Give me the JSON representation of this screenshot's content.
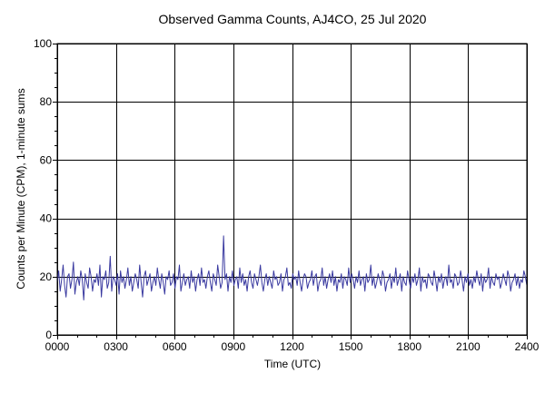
{
  "chart_data": {
    "type": "line",
    "title": "Observed Gamma Counts, AJ4CO, 25 Jul 2020",
    "xlabel": "Time (UTC)",
    "ylabel": "Counts per Minute (CPM), 1-minute sums",
    "x_range_hours": [
      0,
      24
    ],
    "ylim": [
      0,
      100
    ],
    "x_ticks": [
      {
        "hour": 0,
        "label": "0000"
      },
      {
        "hour": 3,
        "label": "0300"
      },
      {
        "hour": 6,
        "label": "0600"
      },
      {
        "hour": 9,
        "label": "0900"
      },
      {
        "hour": 12,
        "label": "1200"
      },
      {
        "hour": 15,
        "label": "1500"
      },
      {
        "hour": 18,
        "label": "1800"
      },
      {
        "hour": 21,
        "label": "2100"
      },
      {
        "hour": 24,
        "label": "2400"
      }
    ],
    "y_ticks": [
      {
        "value": 0,
        "label": "0"
      },
      {
        "value": 20,
        "label": "20"
      },
      {
        "value": 40,
        "label": "40"
      },
      {
        "value": 60,
        "label": "60"
      },
      {
        "value": 80,
        "label": "80"
      },
      {
        "value": 100,
        "label": "100"
      }
    ],
    "grid": true,
    "series": [
      {
        "color": "#3a3aa0",
        "sample_interval_minutes": 5,
        "values": [
          18,
          22,
          15,
          19,
          24,
          17,
          13,
          20,
          21,
          16,
          19,
          25,
          14,
          18,
          20,
          17,
          22,
          19,
          12,
          21,
          18,
          16,
          23,
          20,
          15,
          19,
          18,
          21,
          17,
          24,
          13,
          20,
          19,
          22,
          16,
          18,
          27,
          15,
          20,
          19,
          17,
          21,
          14,
          22,
          18,
          20,
          16,
          19,
          23,
          17,
          20,
          15,
          18,
          21,
          19,
          16,
          24,
          18,
          13,
          20,
          22,
          17,
          19,
          21,
          15,
          18,
          20,
          17,
          23,
          19,
          16,
          21,
          18,
          14,
          20,
          19,
          22,
          17,
          18,
          21,
          16,
          20,
          19,
          24,
          15,
          18,
          21,
          17,
          19,
          20,
          16,
          22,
          18,
          20,
          15,
          19,
          21,
          17,
          23,
          18,
          19,
          16,
          20,
          22,
          18,
          15,
          21,
          19,
          17,
          24,
          20,
          16,
          18,
          34,
          19,
          21,
          15,
          20,
          18,
          22,
          17,
          19,
          20,
          16,
          23,
          18,
          21,
          17,
          19,
          15,
          20,
          22,
          18,
          16,
          21,
          19,
          17,
          20,
          24,
          18,
          15,
          19,
          21,
          17,
          20,
          18,
          16,
          22,
          19,
          20,
          17,
          18,
          21,
          15,
          19,
          20,
          23,
          17,
          18,
          16,
          21,
          19,
          20,
          17,
          22,
          18,
          15,
          19,
          21,
          20,
          16,
          18,
          19,
          22,
          17,
          20,
          21,
          15,
          18,
          19,
          23,
          17,
          20,
          16,
          19,
          21,
          18,
          22,
          17,
          20,
          15,
          19,
          18,
          21,
          16,
          20,
          19,
          17,
          23,
          18,
          21,
          19,
          16,
          20,
          18,
          22,
          17,
          19,
          20,
          15,
          21,
          18,
          19,
          24,
          17,
          20,
          16,
          18,
          21,
          19,
          17,
          22,
          20,
          15,
          18,
          19,
          21,
          16,
          20,
          18,
          23,
          17,
          19,
          21,
          15,
          20,
          18,
          17,
          22,
          19,
          16,
          20,
          18,
          21,
          17,
          19,
          23,
          15,
          20,
          18,
          19,
          16,
          21,
          20,
          18,
          17,
          22,
          19,
          15,
          20,
          18,
          21,
          16,
          19,
          20,
          17,
          24,
          18,
          19,
          16,
          21,
          20,
          17,
          18,
          22,
          19,
          15,
          20,
          18,
          21,
          17,
          19,
          16,
          20,
          18,
          22,
          19,
          17,
          21,
          15,
          20,
          18,
          19,
          23,
          16,
          20,
          18,
          17,
          21,
          19,
          20,
          16,
          18,
          21,
          19,
          17,
          22,
          20,
          15,
          18,
          19,
          21,
          17,
          20,
          16,
          19,
          18,
          22,
          20,
          17
        ]
      }
    ]
  }
}
